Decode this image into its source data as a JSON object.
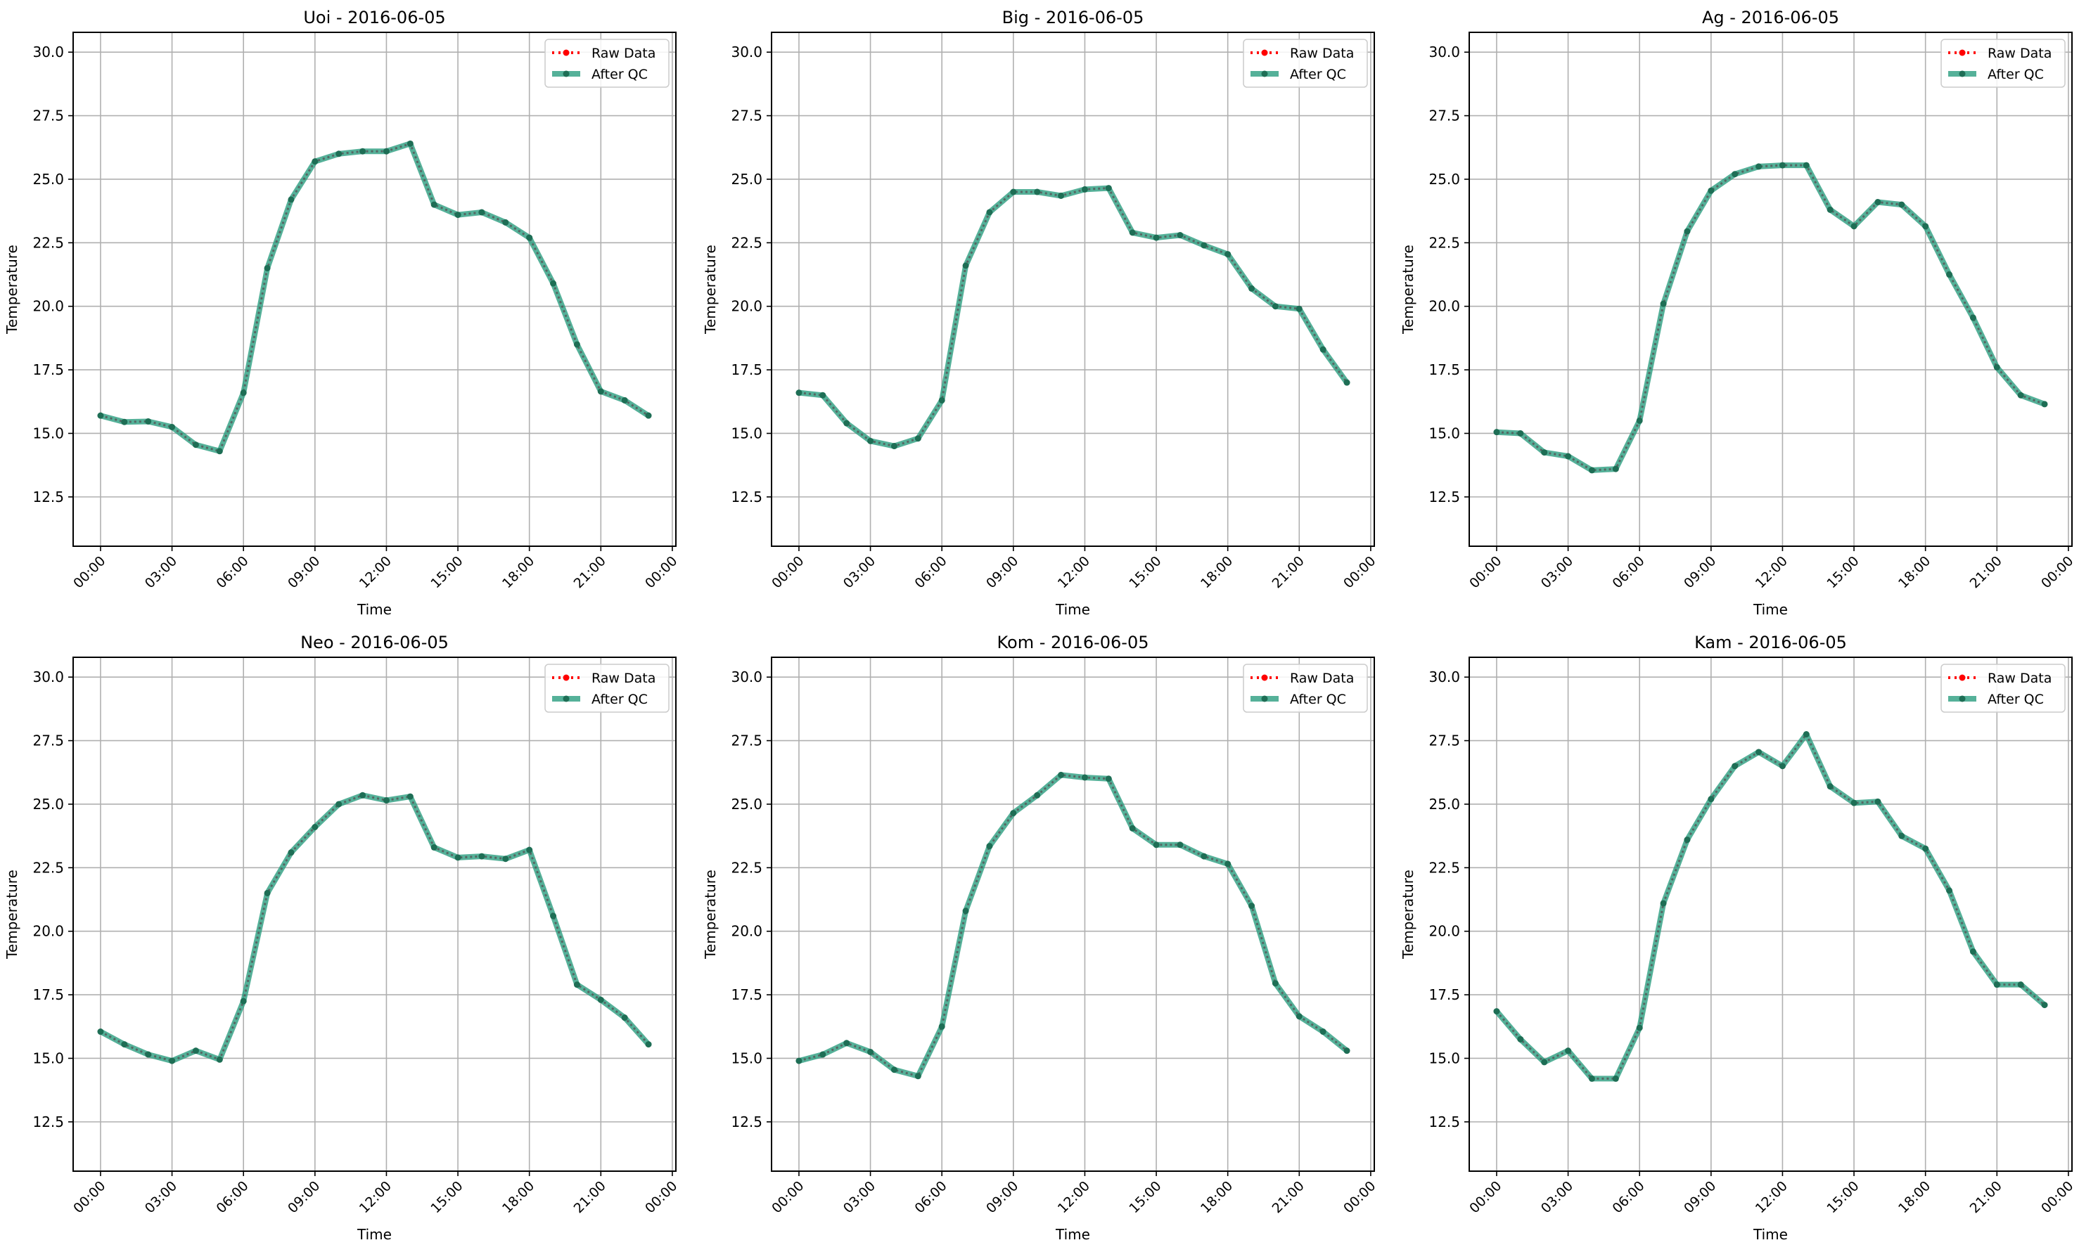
{
  "chart_data": {
    "type": "line",
    "ylabel": "Temperature",
    "xlabel": "Time",
    "ylim": [
      10.56,
      30.78
    ],
    "xlim_hours": [
      -1.15,
      24.15
    ],
    "yticks": [
      "12.5",
      "15.0",
      "17.5",
      "20.0",
      "22.5",
      "25.0",
      "27.5",
      "30.0"
    ],
    "ytick_values": [
      12.5,
      15,
      17.5,
      20,
      22.5,
      25,
      27.5,
      30
    ],
    "xticks": [
      "00:00",
      "03:00",
      "06:00",
      "09:00",
      "12:00",
      "15:00",
      "18:00",
      "21:00",
      "00:00"
    ],
    "xtick_hours": [
      0,
      3,
      6,
      9,
      12,
      15,
      18,
      21,
      24
    ],
    "grid": true,
    "legend": {
      "placement": "top-right",
      "entries": [
        "Raw Data",
        "After QC"
      ]
    },
    "colors": {
      "raw": "#ff0000",
      "qc": "#2a9d7f"
    },
    "hours": [
      0,
      1,
      2,
      3,
      4,
      5,
      6,
      7,
      8,
      9,
      10,
      11,
      12,
      13,
      14,
      15,
      16,
      17,
      18,
      19,
      20,
      21,
      22,
      23
    ],
    "panels": [
      {
        "title": "Uoi - 2016-06-05",
        "values": [
          15.7,
          15.45,
          15.47,
          15.25,
          14.55,
          14.3,
          16.6,
          21.5,
          24.2,
          25.7,
          26.0,
          26.1,
          26.1,
          26.4,
          24.0,
          23.6,
          23.7,
          23.3,
          22.7,
          20.9,
          18.5,
          16.65,
          16.3,
          15.7
        ]
      },
      {
        "title": "Big - 2016-06-05",
        "values": [
          16.6,
          16.5,
          15.4,
          14.7,
          14.5,
          14.8,
          16.3,
          21.6,
          23.7,
          24.5,
          24.5,
          24.35,
          24.6,
          24.65,
          22.9,
          22.7,
          22.8,
          22.4,
          22.05,
          20.7,
          20.0,
          19.9,
          18.3,
          17.0
        ]
      },
      {
        "title": "Ag - 2016-06-05",
        "values": [
          15.05,
          15.0,
          14.25,
          14.1,
          13.55,
          13.6,
          15.5,
          20.1,
          22.95,
          24.55,
          25.2,
          25.5,
          25.55,
          25.55,
          23.8,
          23.15,
          24.1,
          24.0,
          23.15,
          21.25,
          19.55,
          17.6,
          16.5,
          16.15
        ]
      },
      {
        "title": "Neo - 2016-06-05",
        "values": [
          16.05,
          15.55,
          15.15,
          14.9,
          15.3,
          14.95,
          17.25,
          21.5,
          23.1,
          24.1,
          25.0,
          25.35,
          25.15,
          25.3,
          23.3,
          22.9,
          22.95,
          22.85,
          23.2,
          20.6,
          17.9,
          17.3,
          16.6,
          15.55
        ]
      },
      {
        "title": "Kom - 2016-06-05",
        "values": [
          14.9,
          15.15,
          15.6,
          15.25,
          14.55,
          14.3,
          16.25,
          20.8,
          23.35,
          24.65,
          25.35,
          26.15,
          26.05,
          26.0,
          24.05,
          23.4,
          23.4,
          22.95,
          22.65,
          21.0,
          17.95,
          16.65,
          16.05,
          15.3
        ]
      },
      {
        "title": "Kam - 2016-06-05",
        "values": [
          16.85,
          15.75,
          14.85,
          15.3,
          14.2,
          14.2,
          16.2,
          21.1,
          23.6,
          25.2,
          26.5,
          27.05,
          26.5,
          27.75,
          25.7,
          25.05,
          25.1,
          23.75,
          23.25,
          21.6,
          19.2,
          17.9,
          17.9,
          17.1
        ]
      }
    ]
  }
}
